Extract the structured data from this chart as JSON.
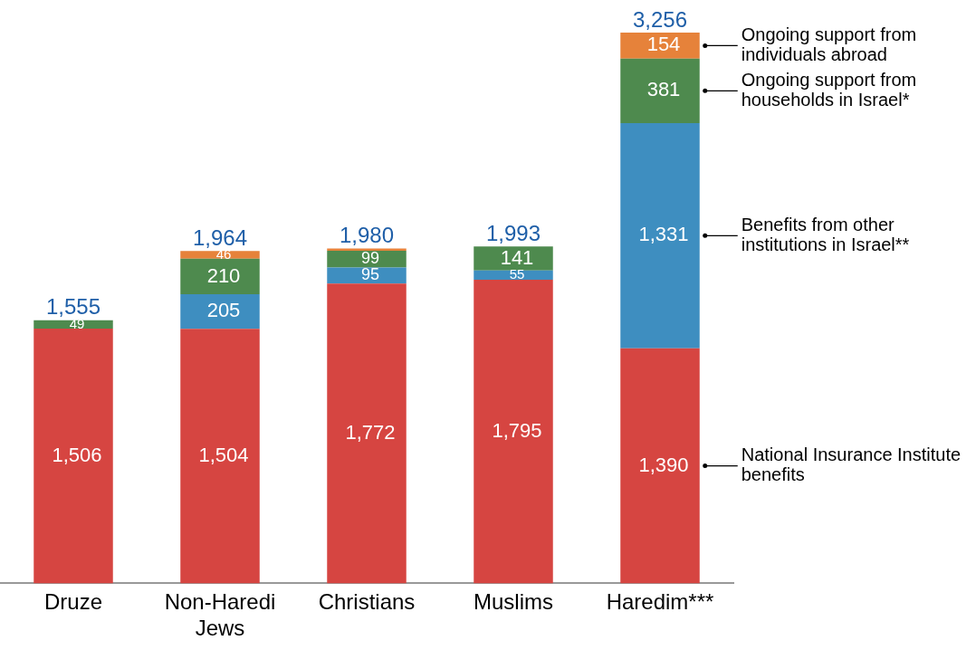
{
  "chart_data": {
    "type": "bar",
    "stacked": true,
    "legend": false,
    "categories": [
      "Druze",
      "Non-Haredi Jews",
      "Christians",
      "Muslims",
      "Haredim***"
    ],
    "series": [
      {
        "name": "National Insurance Institute benefits",
        "color": "#d64541",
        "values": [
          1506,
          1504,
          1772,
          1795,
          1390
        ],
        "value_labels": [
          "1,506",
          "1,504",
          "1,772",
          "1,795",
          "1,390"
        ]
      },
      {
        "name": "Benefits from other institutions in Israel**",
        "color": "#3e8ec0",
        "values": [
          null,
          205,
          95,
          55,
          1331
        ],
        "value_labels": [
          null,
          "205",
          "95",
          "55",
          "1,331"
        ]
      },
      {
        "name": "Ongoing support from households in Israel*",
        "color": "#4e8a4e",
        "values": [
          49,
          210,
          99,
          141,
          381
        ],
        "value_labels": [
          "49",
          "210",
          "99",
          "141",
          "381"
        ]
      },
      {
        "name": "Ongoing support from individuals abroad",
        "color": "#e6823a",
        "values": [
          null,
          46,
          14,
          null,
          154
        ],
        "value_labels": [
          null,
          "46",
          null,
          null,
          "154"
        ]
      }
    ],
    "totals": [
      "1,555",
      "1,964",
      "1,980",
      "1,993",
      "3,256"
    ]
  }
}
